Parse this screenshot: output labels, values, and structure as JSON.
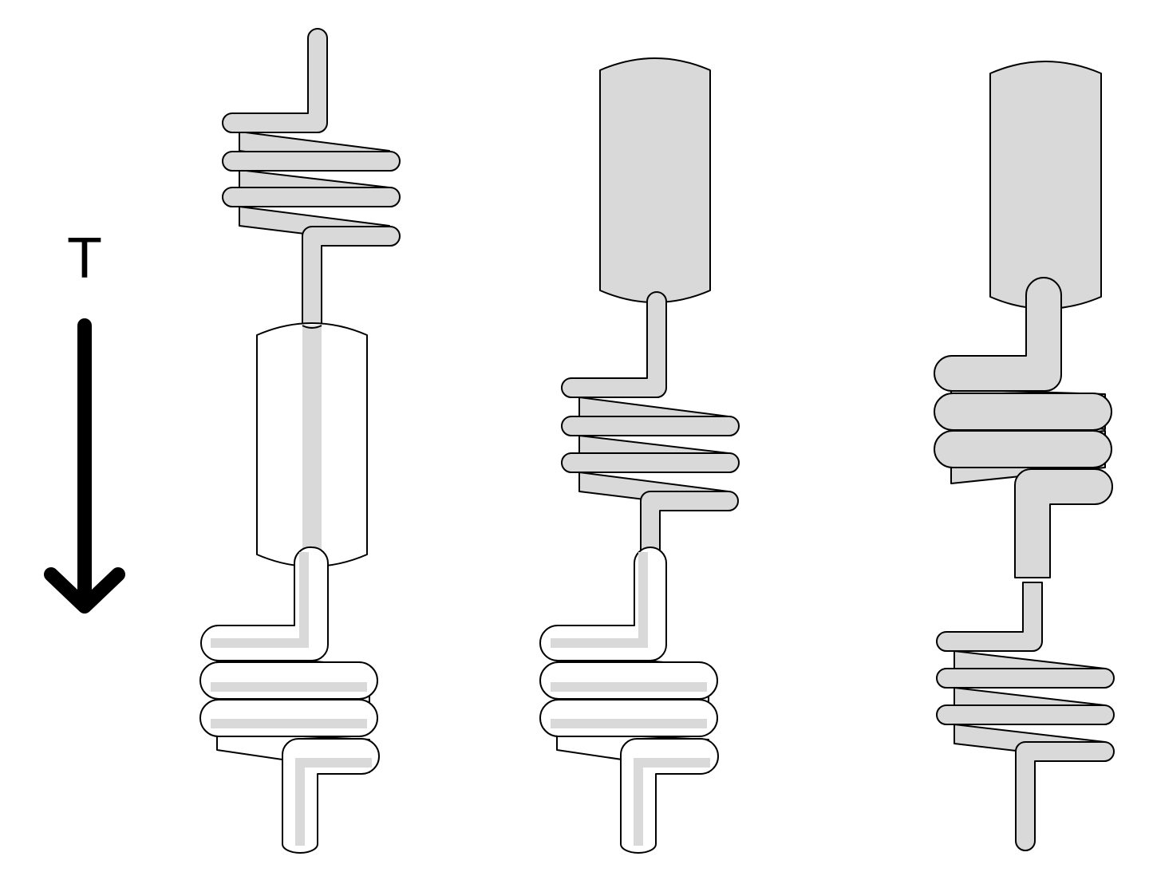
{
  "diagram": {
    "axis_label": "T",
    "colors": {
      "fill": "#d9d9d9",
      "stroke": "#000000",
      "background": "#ffffff"
    },
    "stages": [
      {
        "id": "stage-1",
        "cylinder": "hollow-empty",
        "helices": 2
      },
      {
        "id": "stage-2",
        "cylinder": "filled",
        "helices": 2
      },
      {
        "id": "stage-3",
        "cylinder": "filled",
        "helices": 2
      }
    ]
  }
}
